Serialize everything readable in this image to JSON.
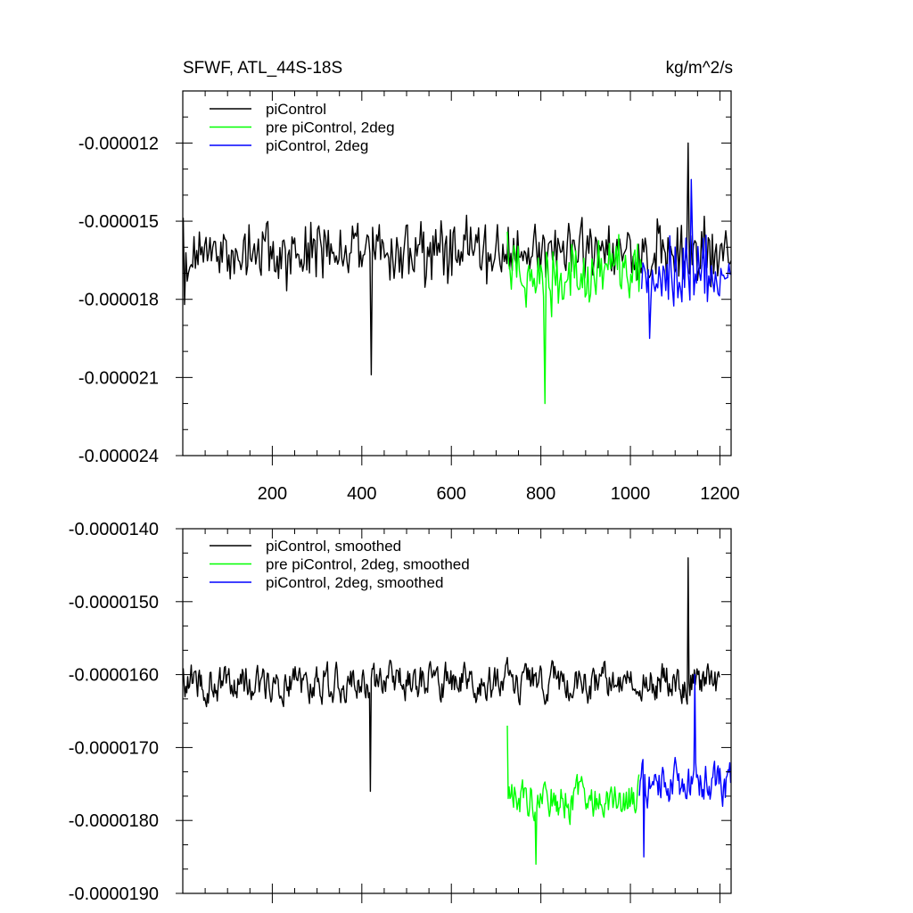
{
  "figure": {
    "title_left": "SFWF, ATL_44S-18S",
    "title_right": "kg/m^2/s"
  },
  "colors": {
    "piControl": "#000000",
    "pre_piControl_2deg": "#00ff00",
    "piControl_2deg": "#0000ff"
  },
  "chart_data": [
    {
      "type": "line",
      "title": "SFWF, ATL_44S-18S",
      "units": "kg/m^2/s",
      "xlabel": "",
      "ylabel": "",
      "xlim": [
        0,
        1225
      ],
      "ylim": [
        -2.4e-05,
        -1e-05
      ],
      "xticks": [
        200,
        400,
        600,
        800,
        1000,
        1200
      ],
      "xtick_labels": [
        "200",
        "400",
        "600",
        "800",
        "1000",
        "1200"
      ],
      "yticks": [
        -1.2e-05,
        -1.5e-05,
        -1.8e-05,
        -2.1e-05,
        -2.4e-05
      ],
      "ytick_labels": [
        "-0.000012",
        "-0.000015",
        "-0.000018",
        "-0.000021",
        "-0.000024"
      ],
      "legend": "top-left",
      "grid": false,
      "series": [
        {
          "name": "piControl",
          "color": "#000000",
          "x_start": 1,
          "x_end": 1225,
          "mean": -1.62e-05,
          "spread": 1.2e-06,
          "extremes": [
            {
              "x": 420,
              "y": -2.09e-05
            },
            {
              "x": 1130,
              "y": -1.2e-05
            },
            {
              "x": 5,
              "y": -1.82e-05
            }
          ]
        },
        {
          "name": "pre piControl, 2deg",
          "color": "#00ff00",
          "x_start": 725,
          "x_end": 1025,
          "mean": -1.7e-05,
          "spread": 1.3e-06,
          "extremes": [
            {
              "x": 808,
              "y": -2.2e-05
            },
            {
              "x": 725,
              "y": -1.54e-05
            }
          ]
        },
        {
          "name": "piControl, 2deg",
          "color": "#0000ff",
          "x_start": 1025,
          "x_end": 1225,
          "mean": -1.7e-05,
          "spread": 1.3e-06,
          "extremes": [
            {
              "x": 1042,
              "y": -1.95e-05
            },
            {
              "x": 1135,
              "y": -1.34e-05
            }
          ]
        }
      ]
    },
    {
      "type": "line",
      "title": "",
      "xlabel": "",
      "ylabel": "",
      "xlim": [
        0,
        1225
      ],
      "ylim": [
        -1.9e-05,
        -1.4e-05
      ],
      "xticks": [
        200,
        400,
        600,
        800,
        1000,
        1200
      ],
      "yticks": [
        -1.4e-05,
        -1.5e-05,
        -1.6e-05,
        -1.7e-05,
        -1.8e-05,
        -1.9e-05
      ],
      "ytick_labels": [
        "-0.0000140",
        "-0.0000150",
        "-0.0000160",
        "-0.0000170",
        "-0.0000180",
        "-0.0000190"
      ],
      "legend": "top-left",
      "grid": false,
      "series": [
        {
          "name": "piControl, smoothed",
          "color": "#000000",
          "x_start": 1,
          "x_end": 1200,
          "mean": -1.61e-05,
          "spread": 4.5e-07,
          "extremes": [
            {
              "x": 420,
              "y": -1.76e-05
            },
            {
              "x": 1130,
              "y": -1.44e-05
            }
          ]
        },
        {
          "name": "pre piControl, 2deg, smoothed",
          "color": "#00ff00",
          "x_start": 725,
          "x_end": 1020,
          "mean": -1.77e-05,
          "spread": 5e-07,
          "extremes": [
            {
              "x": 790,
              "y": -1.86e-05
            },
            {
              "x": 725,
              "y": -1.67e-05
            }
          ]
        },
        {
          "name": "piControl, 2deg, smoothed",
          "color": "#0000ff",
          "x_start": 1020,
          "x_end": 1225,
          "mean": -1.75e-05,
          "spread": 5e-07,
          "extremes": [
            {
              "x": 1030,
              "y": -1.85e-05
            },
            {
              "x": 1145,
              "y": -1.6e-05
            }
          ]
        }
      ]
    }
  ]
}
